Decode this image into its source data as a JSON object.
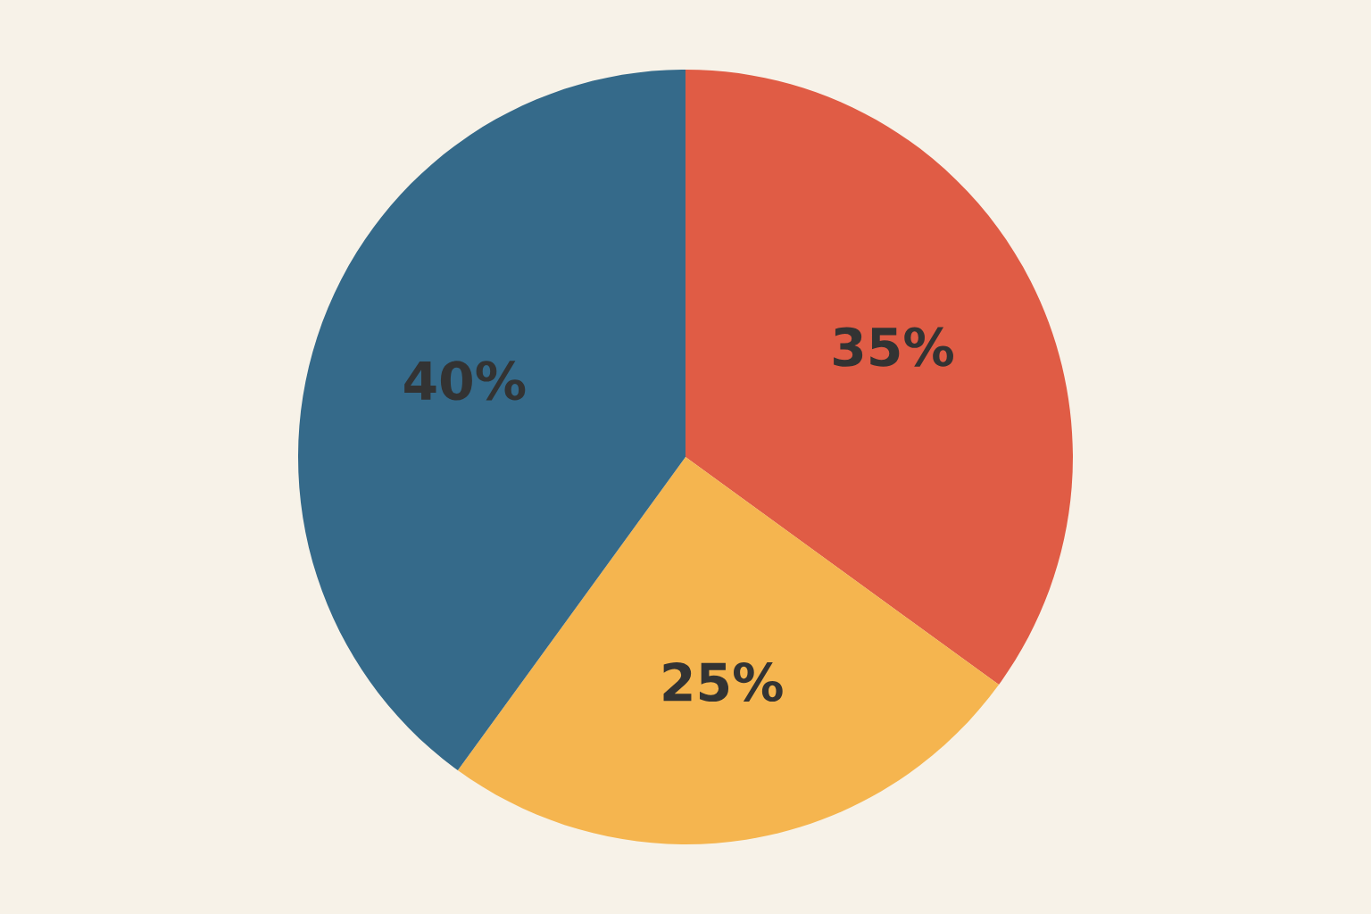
{
  "chart_data": {
    "type": "pie",
    "categories": [
      null,
      null,
      null
    ],
    "values": [
      35,
      25,
      40
    ],
    "colors": [
      "#e05c45",
      "#f5b54f",
      "#356a8a"
    ],
    "value_labels": [
      "35%",
      "25%",
      "40%"
    ]
  }
}
